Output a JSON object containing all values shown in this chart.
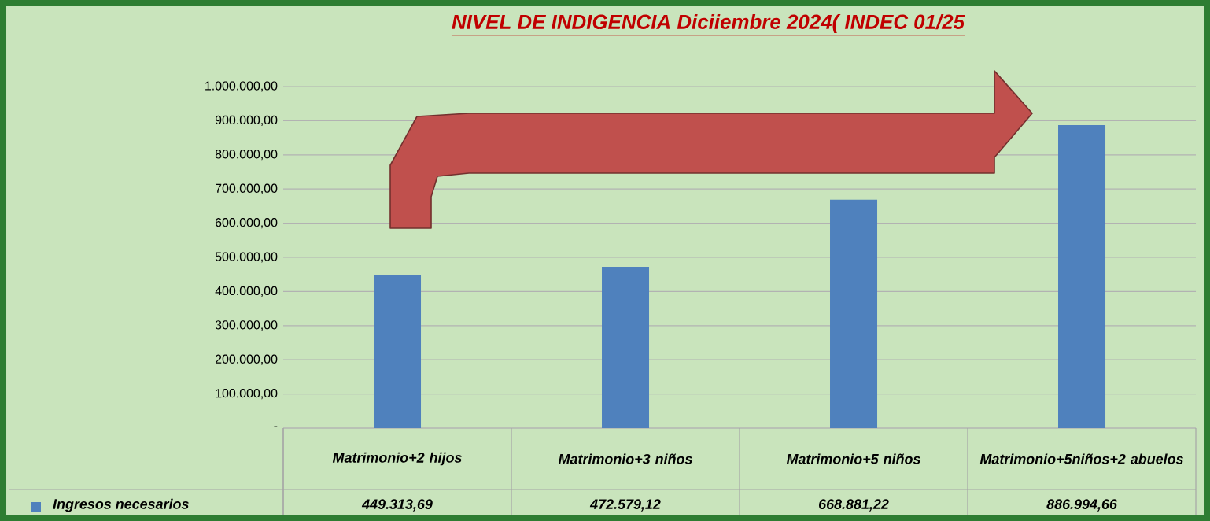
{
  "chart_data": {
    "type": "bar",
    "title": "NIVEL DE INDIGENCIA Diciiembre  2024( INDEC 01/25",
    "categories": [
      "Matrimonio+2 hijos",
      "Matrimonio+3 niños",
      "Matrimonio+5 niños",
      "Matrimonio+5niños+2 abuelos"
    ],
    "series": [
      {
        "name": "Ingresos necesarios",
        "color": "#4f81bd",
        "values": [
          449313.69,
          472579.12,
          668881.22,
          886994.66
        ],
        "value_labels": [
          "449.313,69",
          "472.579,12",
          "668.881,22",
          "886.994,66"
        ]
      }
    ],
    "ylim": [
      0,
      1000000
    ],
    "yticks": [
      {
        "value": 0,
        "label": "-"
      },
      {
        "value": 100000,
        "label": "100.000,00"
      },
      {
        "value": 200000,
        "label": "200.000,00"
      },
      {
        "value": 300000,
        "label": "300.000,00"
      },
      {
        "value": 400000,
        "label": "400.000,00"
      },
      {
        "value": 500000,
        "label": "500.000,00"
      },
      {
        "value": 600000,
        "label": "600.000,00"
      },
      {
        "value": 700000,
        "label": "700.000,00"
      },
      {
        "value": 800000,
        "label": "800.000,00"
      },
      {
        "value": 900000,
        "label": "900.000,00"
      },
      {
        "value": 1000000,
        "label": "1.000.000,00"
      }
    ],
    "grid": "y",
    "legend": "bottom"
  }
}
